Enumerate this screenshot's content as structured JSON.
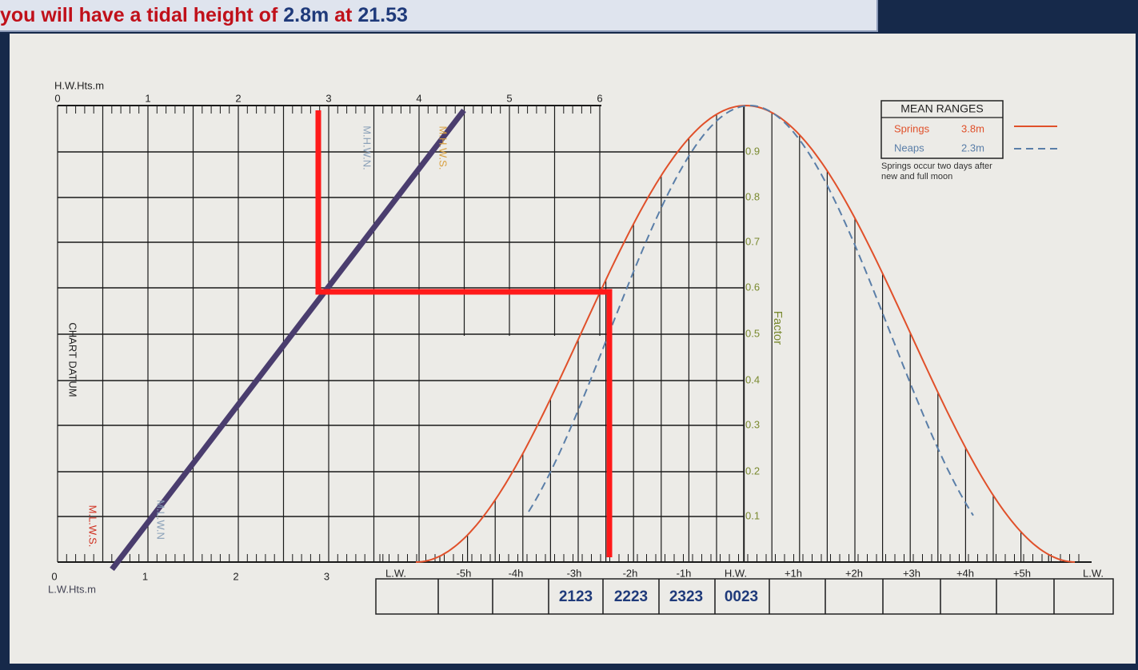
{
  "banner": {
    "parts": [
      "you will have a tidal height of ",
      "2.8m",
      " at ",
      "21.53"
    ]
  },
  "height_scale": {
    "top_title": "H.W.Hts.m",
    "top_ticks": [
      "0",
      "1",
      "2",
      "3",
      "4",
      "5",
      "6"
    ],
    "bottom_title": "L.W.Hts.m",
    "bottom_ticks": [
      "0",
      "1",
      "2",
      "3"
    ],
    "side_label": "CHART DATUM",
    "mhwn": "M.H.W.N.",
    "mhws": "M.H.W.S.",
    "mlws": "M.L.W.S.",
    "mlwn": "M.L.W.N"
  },
  "factor": {
    "title": "Factor",
    "ticks": [
      "0.9",
      "0.8",
      "0.7",
      "0.6",
      "0.5",
      "0.4",
      "0.3",
      "0.2",
      "0.1"
    ]
  },
  "time_labels": [
    "L.W.",
    "-5h",
    "-4h",
    "-3h",
    "-2h",
    "-1h",
    "H.W.",
    "+1h",
    "+2h",
    "+3h",
    "+4h",
    "+5h",
    "L.W."
  ],
  "legend": {
    "title": "MEAN RANGES",
    "rows": [
      {
        "name": "Springs",
        "value": "3.8m"
      },
      {
        "name": "Neaps",
        "value": "2.3m"
      }
    ],
    "note": "Springs occur two days after new and full moon"
  },
  "time_boxes": [
    "2123",
    "2223",
    "2323",
    "0023"
  ]
}
